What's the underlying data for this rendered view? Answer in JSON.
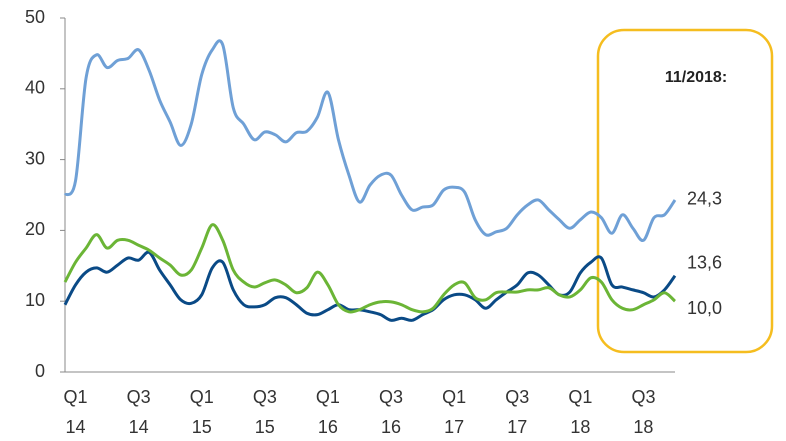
{
  "chart_data": {
    "type": "line",
    "annotation": "11/2018:",
    "categories": [
      null,
      "Q1 14",
      null,
      null,
      null,
      null,
      null,
      "Q3 14",
      null,
      null,
      null,
      null,
      null,
      "Q1 15",
      null,
      null,
      null,
      null,
      null,
      "Q3 15",
      null,
      null,
      null,
      null,
      null,
      "Q1 16",
      null,
      null,
      null,
      null,
      null,
      "Q3 16",
      null,
      null,
      null,
      null,
      null,
      "Q1 17",
      null,
      null,
      null,
      null,
      null,
      "Q3 17",
      null,
      null,
      null,
      null,
      null,
      "Q1 18",
      null,
      null,
      null,
      null,
      null,
      "Q3 18",
      null,
      null,
      null
    ],
    "ylim": [
      0,
      50
    ],
    "yticks": [
      0,
      10,
      20,
      30,
      40,
      50
    ],
    "series": [
      {
        "color": "#6fa0d6",
        "values": [
          25.0,
          27.0,
          41.5,
          44.8,
          43.0,
          44.0,
          44.3,
          45.5,
          42.6,
          38.4,
          35.3,
          32.0,
          35.0,
          42.0,
          45.5,
          46.2,
          37.3,
          35.0,
          32.8,
          33.9,
          33.5,
          32.5,
          33.8,
          34.0,
          36.0,
          39.5,
          32.8,
          27.8,
          24.0,
          26.4,
          27.8,
          27.8,
          25.0,
          22.9,
          23.3,
          23.6,
          25.7,
          26.1,
          25.4,
          21.5,
          19.4,
          19.8,
          20.3,
          22.2,
          23.6,
          24.3,
          22.9,
          21.5,
          20.3,
          21.5,
          22.6,
          21.8,
          19.6,
          22.2,
          20.3,
          18.6,
          21.8,
          22.2,
          24.3
        ],
        "value_labels": [
          null,
          null,
          null,
          null,
          null,
          null,
          null,
          null,
          null,
          null,
          null,
          null,
          null,
          null,
          null,
          null,
          null,
          null,
          null,
          null,
          null,
          null,
          null,
          null,
          null,
          null,
          null,
          null,
          null,
          null,
          null,
          null,
          null,
          null,
          null,
          null,
          null,
          null,
          null,
          null,
          null,
          null,
          null,
          null,
          null,
          null,
          null,
          null,
          null,
          null,
          null,
          null,
          null,
          null,
          null,
          null,
          null,
          null,
          "24,3"
        ]
      },
      {
        "color": "#0a4a86",
        "values": [
          9.5,
          12.3,
          14.1,
          14.7,
          14.1,
          15.1,
          16.1,
          15.8,
          16.9,
          14.4,
          12.3,
          10.2,
          9.7,
          10.9,
          14.7,
          15.5,
          11.6,
          9.5,
          9.2,
          9.5,
          10.5,
          10.5,
          9.5,
          8.3,
          8.1,
          8.8,
          9.5,
          8.8,
          8.8,
          8.5,
          8.1,
          7.3,
          7.6,
          7.3,
          8.1,
          8.8,
          10.2,
          10.9,
          10.9,
          10.2,
          9.0,
          10.2,
          11.3,
          12.3,
          14.0,
          13.7,
          12.3,
          10.9,
          11.3,
          14.0,
          15.5,
          16.1,
          12.3,
          12.0,
          11.6,
          11.2,
          10.6,
          11.6,
          13.6
        ],
        "value_labels": [
          null,
          null,
          null,
          null,
          null,
          null,
          null,
          null,
          null,
          null,
          null,
          null,
          null,
          null,
          null,
          null,
          null,
          null,
          null,
          null,
          null,
          null,
          null,
          null,
          null,
          null,
          null,
          null,
          null,
          null,
          null,
          null,
          null,
          null,
          null,
          null,
          null,
          null,
          null,
          null,
          null,
          null,
          null,
          null,
          null,
          null,
          null,
          null,
          null,
          null,
          null,
          null,
          null,
          null,
          null,
          null,
          null,
          null,
          "13,6"
        ]
      },
      {
        "color": "#6bb536",
        "values": [
          12.7,
          15.5,
          17.5,
          19.4,
          17.5,
          18.6,
          18.6,
          17.9,
          17.2,
          16.1,
          15.1,
          13.7,
          14.4,
          17.5,
          20.8,
          18.6,
          14.4,
          12.7,
          12.0,
          12.6,
          13.0,
          12.3,
          11.2,
          11.9,
          14.1,
          12.3,
          9.5,
          8.5,
          8.8,
          9.5,
          9.9,
          9.9,
          9.5,
          8.8,
          8.5,
          9.0,
          10.9,
          12.3,
          12.6,
          10.5,
          10.2,
          11.2,
          11.3,
          11.3,
          11.6,
          11.6,
          11.9,
          10.9,
          10.6,
          11.6,
          13.3,
          12.7,
          10.2,
          9.0,
          8.8,
          9.5,
          10.2,
          11.2,
          10.0
        ],
        "value_labels": [
          null,
          null,
          null,
          null,
          null,
          null,
          null,
          null,
          null,
          null,
          null,
          null,
          null,
          null,
          null,
          null,
          null,
          null,
          null,
          null,
          null,
          null,
          null,
          null,
          null,
          null,
          null,
          null,
          null,
          null,
          null,
          null,
          null,
          null,
          null,
          null,
          null,
          null,
          null,
          null,
          null,
          null,
          null,
          null,
          null,
          null,
          null,
          null,
          null,
          null,
          null,
          null,
          null,
          null,
          null,
          null,
          null,
          null,
          "10,0"
        ]
      }
    ]
  }
}
